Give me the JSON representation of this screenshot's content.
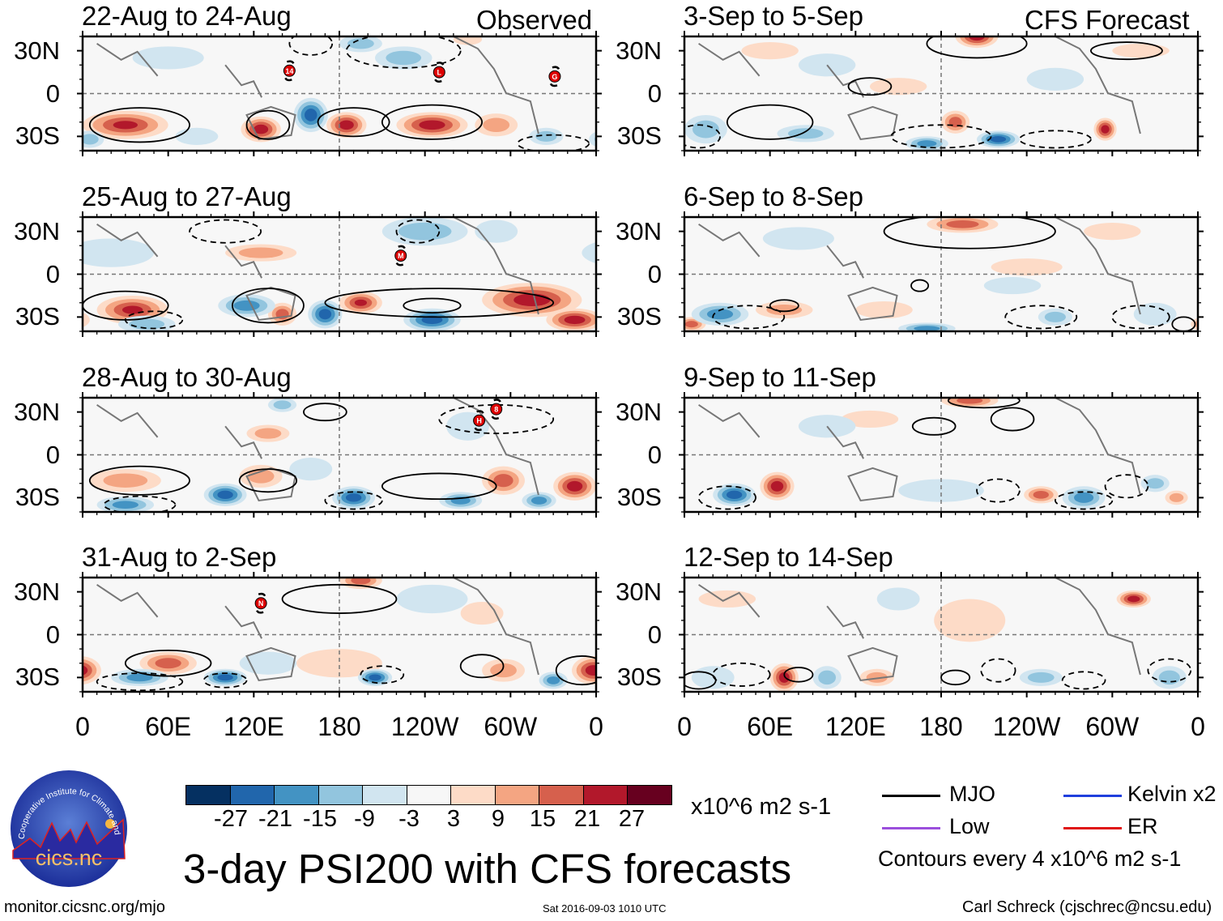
{
  "header": {
    "observed_label": "Observed",
    "forecast_label": "CFS Forecast"
  },
  "colors": {
    "levels": [
      "#053061",
      "#2166ac",
      "#4393c3",
      "#92c5de",
      "#d1e5f0",
      "#f7f7f7",
      "#fddbc7",
      "#f4a582",
      "#d6604d",
      "#b2182b",
      "#67001f"
    ],
    "storm": "#dd0000",
    "coast": "#777777"
  },
  "axes": {
    "lat_labels": [
      "30N",
      "0",
      "30S"
    ],
    "lon_labels": [
      "0",
      "60E",
      "120E",
      "180",
      "120W",
      "60W",
      "0"
    ]
  },
  "panels": [
    {
      "title": "22-Aug to 24-Aug",
      "column": "observed",
      "anomalies": [
        [
          30,
          -22,
          24,
          30,
          10
        ],
        [
          125,
          -25,
          27,
          14,
          9
        ],
        [
          185,
          -22,
          27,
          14,
          9
        ],
        [
          245,
          -22,
          27,
          25,
          9
        ],
        [
          290,
          -22,
          15,
          15,
          8
        ],
        [
          270,
          38,
          9,
          10,
          4
        ],
        [
          160,
          -15,
          -27,
          12,
          12
        ],
        [
          5,
          -32,
          -15,
          10,
          6
        ],
        [
          195,
          35,
          -15,
          15,
          6
        ],
        [
          225,
          25,
          -15,
          20,
          8
        ],
        [
          325,
          -30,
          -15,
          12,
          6
        ],
        [
          80,
          -30,
          -9,
          15,
          6
        ],
        [
          60,
          25,
          -9,
          25,
          8
        ]
      ],
      "contours": [
        [
          40,
          -22,
          35,
          12,
          1
        ],
        [
          190,
          -20,
          25,
          10,
          1
        ],
        [
          245,
          -20,
          35,
          12,
          1
        ],
        [
          130,
          -22,
          15,
          10,
          1
        ],
        [
          225,
          30,
          40,
          12,
          -1
        ],
        [
          160,
          35,
          15,
          8,
          -1
        ],
        [
          330,
          -35,
          25,
          6,
          -1
        ]
      ],
      "storms": [
        [
          "14",
          145,
          16
        ],
        [
          "L",
          250,
          15
        ],
        [
          "G",
          331,
          12
        ]
      ]
    },
    {
      "title": "25-Aug to 27-Aug",
      "column": "observed",
      "anomalies": [
        [
          35,
          -25,
          24,
          25,
          10
        ],
        [
          125,
          15,
          15,
          25,
          6
        ],
        [
          140,
          -28,
          21,
          10,
          8
        ],
        [
          195,
          -20,
          24,
          15,
          8
        ],
        [
          315,
          -18,
          27,
          35,
          12
        ],
        [
          345,
          -32,
          27,
          20,
          8
        ],
        [
          45,
          -35,
          -15,
          20,
          6
        ],
        [
          170,
          -28,
          -27,
          12,
          10
        ],
        [
          245,
          -32,
          -27,
          20,
          8
        ],
        [
          115,
          -22,
          -21,
          20,
          8
        ],
        [
          240,
          30,
          -15,
          30,
          10
        ],
        [
          20,
          15,
          -9,
          30,
          10
        ],
        [
          290,
          30,
          -9,
          15,
          8
        ]
      ],
      "contours": [
        [
          30,
          -22,
          30,
          10,
          1
        ],
        [
          250,
          -20,
          80,
          10,
          1
        ],
        [
          245,
          -22,
          20,
          5,
          1
        ],
        [
          130,
          -22,
          25,
          12,
          1
        ],
        [
          50,
          -32,
          20,
          6,
          -1
        ],
        [
          235,
          30,
          15,
          8,
          -1
        ],
        [
          100,
          30,
          25,
          8,
          -1
        ]
      ],
      "storms": [
        [
          "M",
          223,
          13
        ]
      ]
    },
    {
      "title": "28-Aug to 30-Aug",
      "column": "observed",
      "anomalies": [
        [
          30,
          -18,
          15,
          25,
          8
        ],
        [
          130,
          15,
          15,
          15,
          6
        ],
        [
          125,
          -15,
          15,
          15,
          8
        ],
        [
          295,
          -18,
          21,
          15,
          10
        ],
        [
          345,
          -22,
          27,
          15,
          10
        ],
        [
          100,
          -28,
          -27,
          15,
          8
        ],
        [
          190,
          -30,
          -27,
          15,
          8
        ],
        [
          265,
          -32,
          -21,
          15,
          6
        ],
        [
          320,
          -32,
          -21,
          12,
          6
        ],
        [
          30,
          -35,
          -21,
          20,
          6
        ],
        [
          160,
          -10,
          -9,
          15,
          8
        ],
        [
          140,
          35,
          -15,
          10,
          5
        ],
        [
          270,
          20,
          -9,
          15,
          10
        ]
      ],
      "contours": [
        [
          40,
          -18,
          35,
          10,
          1
        ],
        [
          130,
          -18,
          20,
          8,
          1
        ],
        [
          250,
          -22,
          40,
          9,
          1
        ],
        [
          170,
          30,
          15,
          6,
          1
        ],
        [
          40,
          -35,
          25,
          6,
          -1
        ],
        [
          290,
          25,
          40,
          10,
          -1
        ],
        [
          190,
          -32,
          20,
          6,
          -1
        ]
      ],
      "storms": [
        [
          "H",
          278,
          24
        ],
        [
          "8",
          290,
          32
        ]
      ]
    },
    {
      "title": "31-Aug to 2-Sep",
      "column": "observed",
      "anomalies": [
        [
          60,
          -20,
          21,
          20,
          8
        ],
        [
          195,
          38,
          21,
          15,
          6
        ],
        [
          180,
          -20,
          9,
          30,
          10
        ],
        [
          358,
          -25,
          27,
          15,
          10
        ],
        [
          295,
          -25,
          15,
          15,
          8
        ],
        [
          280,
          15,
          9,
          15,
          8
        ],
        [
          100,
          -30,
          -27,
          15,
          6
        ],
        [
          205,
          -30,
          -27,
          12,
          6
        ],
        [
          40,
          -30,
          -21,
          20,
          6
        ],
        [
          330,
          -32,
          -21,
          10,
          6
        ],
        [
          130,
          -20,
          -9,
          20,
          8
        ],
        [
          245,
          25,
          -9,
          25,
          10
        ]
      ],
      "contours": [
        [
          60,
          -20,
          30,
          9,
          1
        ],
        [
          180,
          25,
          40,
          10,
          1
        ],
        [
          350,
          -25,
          18,
          10,
          1
        ],
        [
          280,
          -22,
          15,
          8,
          1
        ],
        [
          40,
          -33,
          30,
          6,
          -1
        ],
        [
          100,
          -32,
          15,
          5,
          -1
        ],
        [
          210,
          -28,
          15,
          6,
          -1
        ]
      ],
      "storms": [
        [
          "N",
          125,
          22
        ]
      ]
    },
    {
      "title": "3-Sep to 5-Sep",
      "column": "forecast",
      "anomalies": [
        [
          205,
          40,
          27,
          15,
          8
        ],
        [
          190,
          -20,
          21,
          10,
          8
        ],
        [
          295,
          -25,
          27,
          8,
          8
        ],
        [
          150,
          5,
          9,
          20,
          6
        ],
        [
          320,
          30,
          9,
          20,
          5
        ],
        [
          60,
          30,
          9,
          20,
          6
        ],
        [
          220,
          -32,
          -27,
          15,
          6
        ],
        [
          85,
          -28,
          -15,
          20,
          6
        ],
        [
          170,
          -35,
          -21,
          15,
          5
        ],
        [
          15,
          -25,
          -15,
          15,
          10
        ],
        [
          260,
          10,
          -9,
          20,
          8
        ],
        [
          100,
          20,
          -9,
          20,
          8
        ]
      ],
      "contours": [
        [
          60,
          -20,
          30,
          12,
          1
        ],
        [
          205,
          35,
          35,
          10,
          1
        ],
        [
          310,
          30,
          25,
          6,
          1
        ],
        [
          130,
          5,
          15,
          6,
          1
        ],
        [
          180,
          -30,
          35,
          8,
          -1
        ],
        [
          260,
          -32,
          25,
          6,
          -1
        ],
        [
          10,
          -30,
          15,
          8,
          -1
        ]
      ],
      "storms": []
    },
    {
      "title": "6-Sep to 8-Sep",
      "column": "forecast",
      "anomalies": [
        [
          195,
          35,
          21,
          25,
          6
        ],
        [
          5,
          -35,
          21,
          10,
          5
        ],
        [
          70,
          -25,
          15,
          20,
          6
        ],
        [
          140,
          -25,
          9,
          20,
          6
        ],
        [
          300,
          30,
          9,
          20,
          6
        ],
        [
          240,
          5,
          9,
          25,
          6
        ],
        [
          25,
          -28,
          -21,
          20,
          8
        ],
        [
          170,
          -38,
          -21,
          20,
          4
        ],
        [
          260,
          -30,
          -15,
          12,
          6
        ],
        [
          330,
          -28,
          -9,
          15,
          8
        ],
        [
          230,
          -8,
          -9,
          20,
          6
        ],
        [
          80,
          25,
          -9,
          25,
          8
        ]
      ],
      "contours": [
        [
          200,
          30,
          60,
          12,
          1
        ],
        [
          70,
          -22,
          10,
          4,
          1
        ],
        [
          165,
          -8,
          6,
          4,
          1
        ],
        [
          350,
          -35,
          8,
          5,
          1
        ],
        [
          250,
          -30,
          25,
          8,
          -1
        ],
        [
          320,
          -30,
          20,
          8,
          -1
        ],
        [
          45,
          -30,
          25,
          8,
          -1
        ]
      ],
      "storms": []
    },
    {
      "title": "9-Sep to 11-Sep",
      "column": "forecast",
      "anomalies": [
        [
          65,
          -22,
          27,
          12,
          10
        ],
        [
          200,
          38,
          21,
          20,
          5
        ],
        [
          250,
          -28,
          21,
          12,
          6
        ],
        [
          345,
          -30,
          15,
          8,
          5
        ],
        [
          130,
          25,
          9,
          20,
          6
        ],
        [
          35,
          -28,
          -27,
          15,
          8
        ],
        [
          280,
          -30,
          -21,
          15,
          8
        ],
        [
          330,
          -20,
          -15,
          10,
          6
        ],
        [
          180,
          -25,
          -9,
          30,
          8
        ],
        [
          100,
          20,
          -9,
          20,
          8
        ]
      ],
      "contours": [
        [
          175,
          20,
          15,
          6,
          1
        ],
        [
          230,
          25,
          15,
          8,
          1
        ],
        [
          210,
          38,
          25,
          5,
          1
        ],
        [
          30,
          -30,
          20,
          8,
          -1
        ],
        [
          220,
          -25,
          15,
          8,
          -1
        ],
        [
          280,
          -32,
          20,
          6,
          -1
        ],
        [
          310,
          -22,
          15,
          8,
          -1
        ]
      ],
      "storms": []
    },
    {
      "title": "12-Sep to 14-Sep",
      "column": "forecast",
      "anomalies": [
        [
          70,
          -30,
          27,
          10,
          10
        ],
        [
          315,
          25,
          27,
          12,
          6
        ],
        [
          200,
          10,
          9,
          25,
          15
        ],
        [
          135,
          -30,
          15,
          12,
          6
        ],
        [
          30,
          25,
          9,
          20,
          6
        ],
        [
          100,
          -30,
          -15,
          10,
          8
        ],
        [
          250,
          -30,
          -15,
          15,
          6
        ],
        [
          340,
          -30,
          -15,
          12,
          8
        ],
        [
          20,
          -30,
          -9,
          15,
          8
        ],
        [
          150,
          25,
          -9,
          15,
          8
        ]
      ],
      "contours": [
        [
          190,
          -30,
          10,
          5,
          1
        ],
        [
          10,
          -32,
          12,
          6,
          1
        ],
        [
          80,
          -28,
          10,
          5,
          1
        ],
        [
          220,
          -25,
          12,
          8,
          -1
        ],
        [
          340,
          -25,
          15,
          8,
          -1
        ],
        [
          40,
          -28,
          20,
          8,
          -1
        ],
        [
          280,
          -32,
          15,
          6,
          -1
        ]
      ],
      "storms": []
    }
  ],
  "colorbar": {
    "labels": [
      "-27",
      "-21",
      "-15",
      "-9",
      "-3",
      "3",
      "9",
      "15",
      "21",
      "27"
    ],
    "units": "x10^6 m2 s-1"
  },
  "title": "3-day PSI200 with CFS forecasts",
  "legend": {
    "items": [
      {
        "label": "MJO",
        "color": "#000000"
      },
      {
        "label": "Kelvin x2",
        "color": "#1f3fdd"
      },
      {
        "label": "Low",
        "color": "#9b4fdc"
      },
      {
        "label": "ER",
        "color": "#e01414"
      }
    ],
    "note": "Contours every 4 x10^6 m2 s-1"
  },
  "logo": {
    "arc_text": "Cooperative Institute for Climate and Satellites",
    "name": "cics.nc"
  },
  "footer": {
    "url": "monitor.cicsnc.org/mjo",
    "timestamp": "Sat 2016-09-03 1010 UTC",
    "credit": "Carl Schreck (cjschrec@ncsu.edu)"
  }
}
